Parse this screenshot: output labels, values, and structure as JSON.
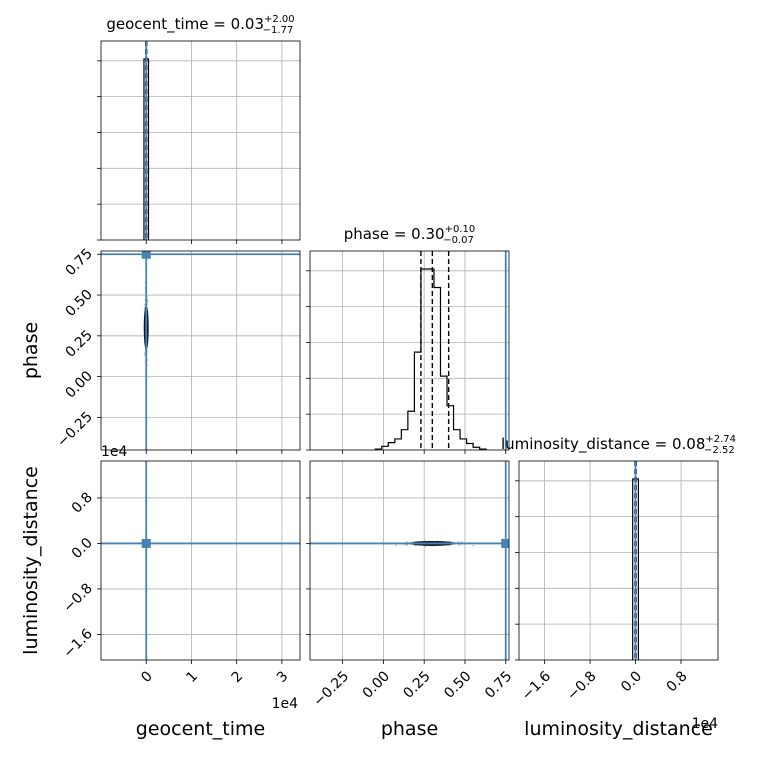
{
  "chart_data": {
    "type": "corner",
    "parameters": [
      "geocent_time",
      "phase",
      "luminosity_distance"
    ],
    "titles": {
      "geocent_time": {
        "name": "geocent_time",
        "value": "0.03",
        "plus": "+2.00",
        "minus": "−1.77"
      },
      "phase": {
        "name": "phase",
        "value": "0.30",
        "plus": "+0.10",
        "minus": "−0.07"
      },
      "luminosity_distance": {
        "name": "luminosity_distance",
        "value": "0.08",
        "plus": "+2.74",
        "minus": "−2.52"
      }
    },
    "axis_labels": {
      "geocent_time": "geocent_time",
      "phase": "phase",
      "luminosity_distance": "luminosity_distance"
    },
    "ranges": {
      "geocent_time": [
        -1.0,
        3.4
      ],
      "phase": [
        -0.45,
        0.77
      ],
      "luminosity_distance": [
        -2.05,
        1.45
      ]
    },
    "ticks": {
      "geocent_time": {
        "values": [
          0,
          1,
          2,
          3
        ],
        "labels": [
          "0",
          "1",
          "2",
          "3"
        ]
      },
      "phase": {
        "values": [
          -0.25,
          0.0,
          0.25,
          0.5,
          0.75
        ],
        "labels": [
          "−0.25",
          "0.00",
          "0.25",
          "0.50",
          "0.75"
        ]
      },
      "luminosity_distance": {
        "values": [
          -1.6,
          -0.8,
          0.0,
          0.8
        ],
        "labels": [
          "−1.6",
          "−0.8",
          "0.0",
          "0.8"
        ]
      }
    },
    "offset_texts": {
      "geocent_time": "1e4",
      "luminosity_distance": "1e4"
    },
    "truths": {
      "geocent_time": 0.0,
      "phase": 0.75,
      "luminosity_distance": 0.0
    },
    "quantiles": {
      "geocent_time": [
        -0.01,
        0.0,
        0.01
      ],
      "phase": [
        0.23,
        0.3,
        0.4
      ],
      "luminosity_distance": [
        -0.01,
        0.0,
        0.01
      ]
    },
    "histograms": {
      "geocent_time": {
        "edges": [
          -0.05,
          0.05
        ],
        "heights": [
          1.0
        ]
      },
      "phase": {
        "edges": [
          -0.05,
          -0.01,
          0.03,
          0.07,
          0.11,
          0.15,
          0.19,
          0.23,
          0.27,
          0.31,
          0.35,
          0.39,
          0.43,
          0.47,
          0.51,
          0.55,
          0.59,
          0.63
        ],
        "heights": [
          0.005,
          0.02,
          0.04,
          0.06,
          0.11,
          0.21,
          0.53,
          0.98,
          0.98,
          0.88,
          0.4,
          0.24,
          0.11,
          0.06,
          0.035,
          0.015,
          0.005
        ]
      },
      "luminosity_distance": {
        "edges": [
          -0.05,
          0.05
        ],
        "heights": [
          1.0
        ]
      }
    },
    "grid": true,
    "truth_color": "#4682b4",
    "hist_color": "#000000",
    "scatter_color": "#b8b8b8",
    "contour_color": "#0d1a26"
  }
}
